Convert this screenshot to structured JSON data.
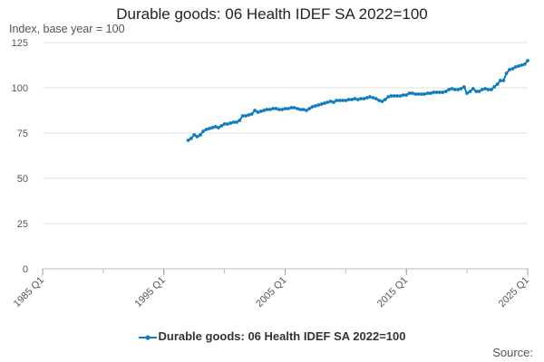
{
  "chart_data": {
    "type": "line",
    "title": "Durable goods: 06 Health IDEF SA 2022=100",
    "ylabel": "Index, base year = 100",
    "xlabel": "",
    "source": "Source:",
    "x_ticks": [
      "1985 Q1",
      "1995 Q1",
      "2005 Q1",
      "2015 Q1",
      "2025 Q1"
    ],
    "x_range": [
      "1985 Q1",
      "2025 Q1"
    ],
    "ylim": [
      0,
      125
    ],
    "y_ticks": [
      0,
      25,
      50,
      75,
      100,
      125
    ],
    "grid": "horizontal",
    "legend_position": "bottom",
    "color": "#0f7cbf",
    "series": [
      {
        "name": "Durable goods: 06 Health IDEF SA 2022=100",
        "points": [
          [
            "1997 Q1",
            71
          ],
          [
            "1997 Q2",
            72
          ],
          [
            "1997 Q3",
            74
          ],
          [
            "1997 Q4",
            73
          ],
          [
            "1998 Q1",
            74
          ],
          [
            "1998 Q2",
            76
          ],
          [
            "1998 Q3",
            77
          ],
          [
            "1998 Q4",
            77.5
          ],
          [
            "1999 Q1",
            78
          ],
          [
            "1999 Q2",
            78.5
          ],
          [
            "1999 Q3",
            78
          ],
          [
            "1999 Q4",
            79
          ],
          [
            "2000 Q1",
            80
          ],
          [
            "2000 Q2",
            80
          ],
          [
            "2000 Q3",
            80.5
          ],
          [
            "2000 Q4",
            81
          ],
          [
            "2001 Q1",
            81
          ],
          [
            "2001 Q2",
            82
          ],
          [
            "2001 Q3",
            84.5
          ],
          [
            "2001 Q4",
            84.5
          ],
          [
            "2002 Q1",
            85
          ],
          [
            "2002 Q2",
            85.5
          ],
          [
            "2002 Q3",
            87.5
          ],
          [
            "2002 Q4",
            86.5
          ],
          [
            "2003 Q1",
            87
          ],
          [
            "2003 Q2",
            87.5
          ],
          [
            "2003 Q3",
            88
          ],
          [
            "2003 Q4",
            88
          ],
          [
            "2004 Q1",
            88.5
          ],
          [
            "2004 Q2",
            88.5
          ],
          [
            "2004 Q3",
            88
          ],
          [
            "2004 Q4",
            88
          ],
          [
            "2005 Q1",
            88.5
          ],
          [
            "2005 Q2",
            88.5
          ],
          [
            "2005 Q3",
            89
          ],
          [
            "2005 Q4",
            89
          ],
          [
            "2006 Q1",
            88.5
          ],
          [
            "2006 Q2",
            88
          ],
          [
            "2006 Q3",
            88
          ],
          [
            "2006 Q4",
            87.5
          ],
          [
            "2007 Q1",
            88.5
          ],
          [
            "2007 Q2",
            89.5
          ],
          [
            "2007 Q3",
            90
          ],
          [
            "2007 Q4",
            90.5
          ],
          [
            "2008 Q1",
            91
          ],
          [
            "2008 Q2",
            91.5
          ],
          [
            "2008 Q3",
            92
          ],
          [
            "2008 Q4",
            92.5
          ],
          [
            "2009 Q1",
            92
          ],
          [
            "2009 Q2",
            93
          ],
          [
            "2009 Q3",
            93
          ],
          [
            "2009 Q4",
            93
          ],
          [
            "2010 Q1",
            93
          ],
          [
            "2010 Q2",
            93.5
          ],
          [
            "2010 Q3",
            93.5
          ],
          [
            "2010 Q4",
            94
          ],
          [
            "2011 Q1",
            93.5
          ],
          [
            "2011 Q2",
            94
          ],
          [
            "2011 Q3",
            94
          ],
          [
            "2011 Q4",
            94.5
          ],
          [
            "2012 Q1",
            95
          ],
          [
            "2012 Q2",
            94.5
          ],
          [
            "2012 Q3",
            94
          ],
          [
            "2012 Q4",
            93
          ],
          [
            "2013 Q1",
            92.5
          ],
          [
            "2013 Q2",
            93.5
          ],
          [
            "2013 Q3",
            95
          ],
          [
            "2013 Q4",
            95.5
          ],
          [
            "2014 Q1",
            95.5
          ],
          [
            "2014 Q2",
            95.5
          ],
          [
            "2014 Q3",
            95.5
          ],
          [
            "2014 Q4",
            96
          ],
          [
            "2015 Q1",
            96
          ],
          [
            "2015 Q2",
            97
          ],
          [
            "2015 Q3",
            97
          ],
          [
            "2015 Q4",
            96.5
          ],
          [
            "2016 Q1",
            96.5
          ],
          [
            "2016 Q2",
            96.5
          ],
          [
            "2016 Q3",
            96.5
          ],
          [
            "2016 Q4",
            97
          ],
          [
            "2017 Q1",
            97
          ],
          [
            "2017 Q2",
            97.5
          ],
          [
            "2017 Q3",
            97.5
          ],
          [
            "2017 Q4",
            97.5
          ],
          [
            "2018 Q1",
            97.5
          ],
          [
            "2018 Q2",
            98
          ],
          [
            "2018 Q3",
            99
          ],
          [
            "2018 Q4",
            99.5
          ],
          [
            "2019 Q1",
            99
          ],
          [
            "2019 Q2",
            99
          ],
          [
            "2019 Q3",
            99.5
          ],
          [
            "2019 Q4",
            100.5
          ],
          [
            "2020 Q1",
            97
          ],
          [
            "2020 Q2",
            98
          ],
          [
            "2020 Q3",
            99.5
          ],
          [
            "2020 Q4",
            98
          ],
          [
            "2021 Q1",
            98
          ],
          [
            "2021 Q2",
            99
          ],
          [
            "2021 Q3",
            99.5
          ],
          [
            "2021 Q4",
            99
          ],
          [
            "2022 Q1",
            99
          ],
          [
            "2022 Q2",
            100.5
          ],
          [
            "2022 Q3",
            102
          ],
          [
            "2022 Q4",
            104
          ],
          [
            "2023 Q1",
            104
          ],
          [
            "2023 Q2",
            108
          ],
          [
            "2023 Q3",
            110
          ],
          [
            "2023 Q4",
            110.5
          ],
          [
            "2024 Q1",
            111.5
          ],
          [
            "2024 Q2",
            112
          ],
          [
            "2024 Q3",
            112.5
          ],
          [
            "2024 Q4",
            113
          ],
          [
            "2025 Q1",
            115
          ]
        ]
      }
    ]
  }
}
